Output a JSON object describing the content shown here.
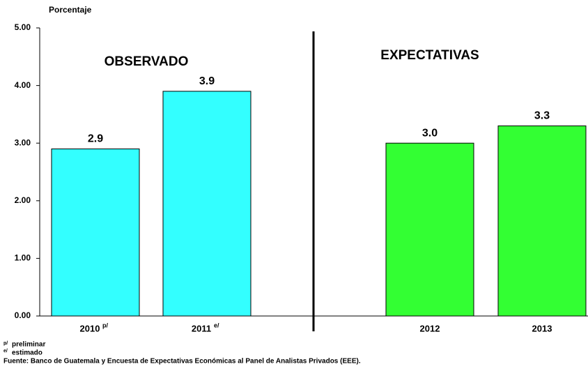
{
  "chart_data": {
    "type": "bar",
    "y_label": "Porcentaje",
    "categories": [
      "2010",
      "2011",
      "2012",
      "2013"
    ],
    "category_notes": [
      "p/",
      "e/",
      null,
      null
    ],
    "values": [
      2.9,
      3.9,
      3.0,
      3.3
    ],
    "value_labels": [
      "2.9",
      "3.9",
      "3.0",
      "3.3"
    ],
    "colors": [
      "#33ffff",
      "#33ffff",
      "#33ff33",
      "#33ff33"
    ],
    "groups": [
      "OBSERVADO",
      "EXPECTATIVAS"
    ],
    "ylim": [
      0,
      5
    ],
    "yticks": [
      {
        "value": 0,
        "label": "0.00"
      },
      {
        "value": 1,
        "label": "1.00"
      },
      {
        "value": 2,
        "label": "2.00"
      },
      {
        "value": 3,
        "label": "3.00"
      },
      {
        "value": 4,
        "label": "4.00"
      },
      {
        "value": 5,
        "label": "5.00"
      }
    ],
    "footnotes": [
      "preliminar",
      "estimado",
      "Fuente: Banco de Guatemala y Encuesta de Expectativas Económicas al Panel de Analistas Privados (EEE)."
    ],
    "footnote_marks": [
      "p/",
      "e/"
    ]
  }
}
